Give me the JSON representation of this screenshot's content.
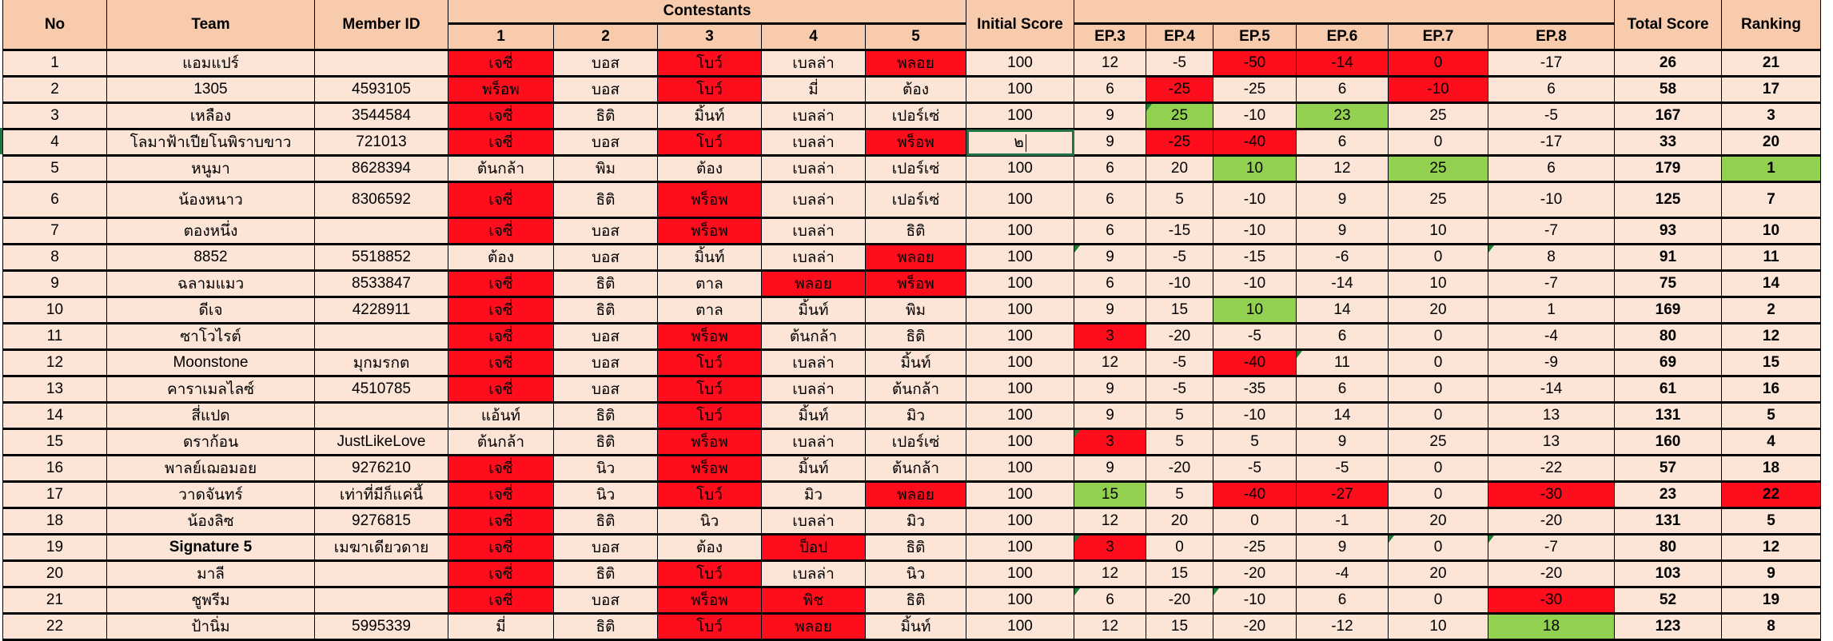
{
  "colors": {
    "header": "#f8cbad",
    "body": "#fce4d6",
    "red": "#ff0d1d",
    "green": "#92d050",
    "selection": "#217346"
  },
  "header": {
    "no": "No",
    "team": "Team",
    "member_id": "Member ID",
    "contestants": "Contestants",
    "contestant_cols": [
      "1",
      "2",
      "3",
      "4",
      "5"
    ],
    "initial_score": "Initial Score",
    "episodes": [
      "EP.3",
      "EP.4",
      "EP.5",
      "EP.6",
      "EP.7",
      "EP.8"
    ],
    "total_score": "Total Score",
    "ranking": "Ranking"
  },
  "rows": [
    {
      "no": "1",
      "team": "แอมแปร์",
      "member_id": "",
      "contestants": [
        "เจซี่",
        "บอส",
        "โบว์",
        "เบลล่า",
        "พลอย"
      ],
      "initial": "100",
      "eps": [
        "12",
        "-5",
        "-50",
        "-14",
        "0",
        "-17"
      ],
      "total": "26",
      "rank": "21",
      "hl": {
        "c0": "r",
        "c2": "r",
        "c4": "r",
        "e2": "r",
        "e3": "r",
        "e4": "r"
      }
    },
    {
      "no": "2",
      "team": "1305",
      "member_id": "4593105",
      "contestants": [
        "พร็อพ",
        "บอส",
        "โบว์",
        "มี่",
        "ต้อง"
      ],
      "initial": "100",
      "eps": [
        "6",
        "-25",
        "-25",
        "6",
        "-10",
        "6"
      ],
      "total": "58",
      "rank": "17",
      "hl": {
        "c0": "r",
        "c2": "r",
        "e1": "r",
        "e4": "r"
      }
    },
    {
      "no": "3",
      "team": "เหลือง",
      "member_id": "3544584",
      "contestants": [
        "เจซี่",
        "ธิติ",
        "มิ้นท์",
        "เบลล่า",
        "เปอร์เซ่"
      ],
      "initial": "100",
      "eps": [
        "9",
        "25",
        "-10",
        "23",
        "25",
        "-5"
      ],
      "total": "167",
      "rank": "3",
      "hl": {
        "c0": "r",
        "e1": "g",
        "e3": "g"
      },
      "tri": [
        "e1"
      ]
    },
    {
      "no": "4",
      "team": "โลมาฟ้าเปียโนพิราบขาว",
      "member_id": "721013",
      "contestants": [
        "เจซี่",
        "บอส",
        "โบว์",
        "เบลล่า",
        "พร็อพ"
      ],
      "initial": "๒",
      "editing": true,
      "eps": [
        "9",
        "-25",
        "-40",
        "6",
        "0",
        "-17"
      ],
      "total": "33",
      "rank": "20",
      "hl": {
        "c0": "r",
        "c2": "r",
        "c4": "r",
        "e1": "r",
        "e2": "r"
      }
    },
    {
      "no": "5",
      "team": "หนูมา",
      "member_id": "8628394",
      "contestants": [
        "ต้นกล้า",
        "พิม",
        "ต้อง",
        "เบลล่า",
        "เปอร์เซ่"
      ],
      "initial": "100",
      "eps": [
        "6",
        "20",
        "10",
        "12",
        "25",
        "6"
      ],
      "total": "179",
      "rank": "1",
      "hl": {
        "e2": "g",
        "e4": "g",
        "rank": "g"
      }
    },
    {
      "no": "6",
      "team": "น้องหนาว",
      "member_id": "8306592",
      "contestants": [
        "เจซี่",
        "ธิติ",
        "พร็อพ",
        "เบลล่า",
        "เปอร์เซ่"
      ],
      "initial": "100",
      "eps": [
        "6",
        "5",
        "-10",
        "9",
        "25",
        "-10"
      ],
      "total": "125",
      "rank": "7",
      "hl": {
        "c0": "r",
        "c2": "r"
      },
      "tall": true
    },
    {
      "no": "7",
      "team": "ตองหนึ่ง",
      "member_id": "",
      "contestants": [
        "เจซี่",
        "บอส",
        "พร็อพ",
        "เบลล่า",
        "ธิติ"
      ],
      "initial": "100",
      "eps": [
        "6",
        "-15",
        "-10",
        "9",
        "10",
        "-7"
      ],
      "total": "93",
      "rank": "10",
      "hl": {
        "c0": "r",
        "c2": "r"
      }
    },
    {
      "no": "8",
      "team": "8852",
      "member_id": "5518852",
      "contestants": [
        "ต้อง",
        "บอส",
        "มิ้นท์",
        "เบลล่า",
        "พลอย"
      ],
      "initial": "100",
      "eps": [
        "9",
        "-5",
        "-15",
        "-6",
        "0",
        "8"
      ],
      "total": "91",
      "rank": "11",
      "hl": {
        "c4": "r"
      },
      "tri": [
        "e0",
        "e5"
      ]
    },
    {
      "no": "9",
      "team": "ฉลามแมว",
      "member_id": "8533847",
      "contestants": [
        "เจซี่",
        "ธิติ",
        "ตาล",
        "พลอย",
        "พร็อพ"
      ],
      "initial": "100",
      "eps": [
        "6",
        "-10",
        "-10",
        "-14",
        "10",
        "-7"
      ],
      "total": "75",
      "rank": "14",
      "hl": {
        "c0": "r",
        "c3": "r",
        "c4": "r"
      }
    },
    {
      "no": "10",
      "team": "ดีเจ",
      "member_id": "4228911",
      "contestants": [
        "เจซี่",
        "ธิติ",
        "ตาล",
        "มิ้นท์",
        "พิม"
      ],
      "initial": "100",
      "eps": [
        "9",
        "15",
        "10",
        "14",
        "20",
        "1"
      ],
      "total": "169",
      "rank": "2",
      "hl": {
        "c0": "r",
        "e2": "g"
      }
    },
    {
      "no": "11",
      "team": "ซาโวไรต์",
      "member_id": "",
      "contestants": [
        "เจซี่",
        "บอส",
        "พร็อพ",
        "ต้นกล้า",
        "ธิติ"
      ],
      "initial": "100",
      "eps": [
        "3",
        "-20",
        "-5",
        "6",
        "0",
        "-4"
      ],
      "total": "80",
      "rank": "12",
      "hl": {
        "c0": "r",
        "c2": "r",
        "e0": "r"
      }
    },
    {
      "no": "12",
      "team": "Moonstone",
      "member_id": "มุกมรกต",
      "contestants": [
        "เจซี่",
        "บอส",
        "โบว์",
        "เบลล่า",
        "มิ้นท์"
      ],
      "initial": "100",
      "eps": [
        "12",
        "-5",
        "-40",
        "11",
        "0",
        "-9"
      ],
      "total": "69",
      "rank": "15",
      "hl": {
        "c0": "r",
        "c2": "r",
        "e2": "r"
      },
      "tri": [
        "e3"
      ]
    },
    {
      "no": "13",
      "team": "คาราเมลไลซ์",
      "member_id": "4510785",
      "contestants": [
        "เจซี่",
        "บอส",
        "โบว์",
        "เบลล่า",
        "ต้นกล้า"
      ],
      "initial": "100",
      "eps": [
        "9",
        "-5",
        "-35",
        "6",
        "0",
        "-14"
      ],
      "total": "61",
      "rank": "16",
      "hl": {
        "c0": "r",
        "c2": "r"
      }
    },
    {
      "no": "14",
      "team": "สี่แปด",
      "member_id": "",
      "contestants": [
        "แอ้นท์",
        "ธิติ",
        "โบว์",
        "มิ้นท์",
        "มิว"
      ],
      "initial": "100",
      "eps": [
        "9",
        "5",
        "-10",
        "14",
        "0",
        "13"
      ],
      "total": "131",
      "rank": "5",
      "hl": {
        "c2": "r"
      }
    },
    {
      "no": "15",
      "team": "ดราก้อน",
      "member_id": "JustLikeLove",
      "contestants": [
        "ต้นกล้า",
        "ธิติ",
        "พร็อพ",
        "เบลล่า",
        "เปอร์เซ่"
      ],
      "initial": "100",
      "eps": [
        "3",
        "5",
        "5",
        "9",
        "25",
        "13"
      ],
      "total": "160",
      "rank": "4",
      "hl": {
        "c2": "r",
        "e0": "r"
      },
      "tri": [
        "e0"
      ]
    },
    {
      "no": "16",
      "team": "พาลย์เฌอมอย",
      "member_id": "9276210",
      "contestants": [
        "เจซี่",
        "นิว",
        "พร็อพ",
        "มิ้นท์",
        "ต้นกล้า"
      ],
      "initial": "100",
      "eps": [
        "9",
        "-20",
        "-5",
        "-5",
        "0",
        "-22"
      ],
      "total": "57",
      "rank": "18",
      "hl": {
        "c0": "r",
        "c2": "r"
      }
    },
    {
      "no": "17",
      "team": "วาดจันทร์",
      "member_id": "เท่าที่มีก็แค่นี้",
      "contestants": [
        "เจซี่",
        "นิว",
        "โบว์",
        "มิว",
        "พลอย"
      ],
      "initial": "100",
      "eps": [
        "15",
        "5",
        "-40",
        "-27",
        "0",
        "-30"
      ],
      "total": "23",
      "rank": "22",
      "hl": {
        "c0": "r",
        "c2": "r",
        "c4": "r",
        "e0": "g",
        "e2": "r",
        "e3": "r",
        "e5": "r",
        "rank": "r"
      }
    },
    {
      "no": "18",
      "team": "น้องลิซ",
      "member_id": "9276815",
      "contestants": [
        "เจซี่",
        "ธิติ",
        "นิว",
        "เบลล่า",
        "มิว"
      ],
      "initial": "100",
      "eps": [
        "12",
        "20",
        "0",
        "-1",
        "20",
        "-20"
      ],
      "total": "131",
      "rank": "5",
      "hl": {
        "c0": "r"
      }
    },
    {
      "no": "19",
      "team": "Signature 5",
      "team_bold": true,
      "member_id": "เมฆาเดียวดาย",
      "contestants": [
        "เจซี่",
        "บอส",
        "ต้อง",
        "ป็อป",
        "ธิติ"
      ],
      "initial": "100",
      "eps": [
        "3",
        "0",
        "-25",
        "9",
        "0",
        "-7"
      ],
      "total": "80",
      "rank": "12",
      "hl": {
        "c0": "r",
        "c3": "r",
        "e0": "r"
      },
      "tri": [
        "e0",
        "e4",
        "e5"
      ]
    },
    {
      "no": "20",
      "team": "มาลี",
      "member_id": "",
      "contestants": [
        "เจซี่",
        "ธิติ",
        "โบว์",
        "เบลล่า",
        "นิว"
      ],
      "initial": "100",
      "eps": [
        "12",
        "15",
        "-20",
        "-4",
        "20",
        "-20"
      ],
      "total": "103",
      "rank": "9",
      "hl": {
        "c0": "r",
        "c2": "r"
      }
    },
    {
      "no": "21",
      "team": "ชูพรีม",
      "member_id": "",
      "contestants": [
        "เจซี่",
        "บอส",
        "พร็อพ",
        "พิช",
        "ธิติ"
      ],
      "initial": "100",
      "eps": [
        "6",
        "-20",
        "-10",
        "6",
        "0",
        "-30"
      ],
      "total": "52",
      "rank": "19",
      "hl": {
        "c0": "r",
        "c2": "r",
        "c3": "r",
        "e5": "r"
      },
      "tri": [
        "e0",
        "e2"
      ]
    },
    {
      "no": "22",
      "team": "ป้านิ่ม",
      "member_id": "5995339",
      "contestants": [
        "มี่",
        "ธิติ",
        "โบว์",
        "พลอย",
        "มิ้นท์"
      ],
      "initial": "100",
      "eps": [
        "12",
        "15",
        "-20",
        "-12",
        "10",
        "18"
      ],
      "total": "123",
      "rank": "8",
      "hl": {
        "c2": "r",
        "c3": "r",
        "e5": "g"
      }
    }
  ]
}
